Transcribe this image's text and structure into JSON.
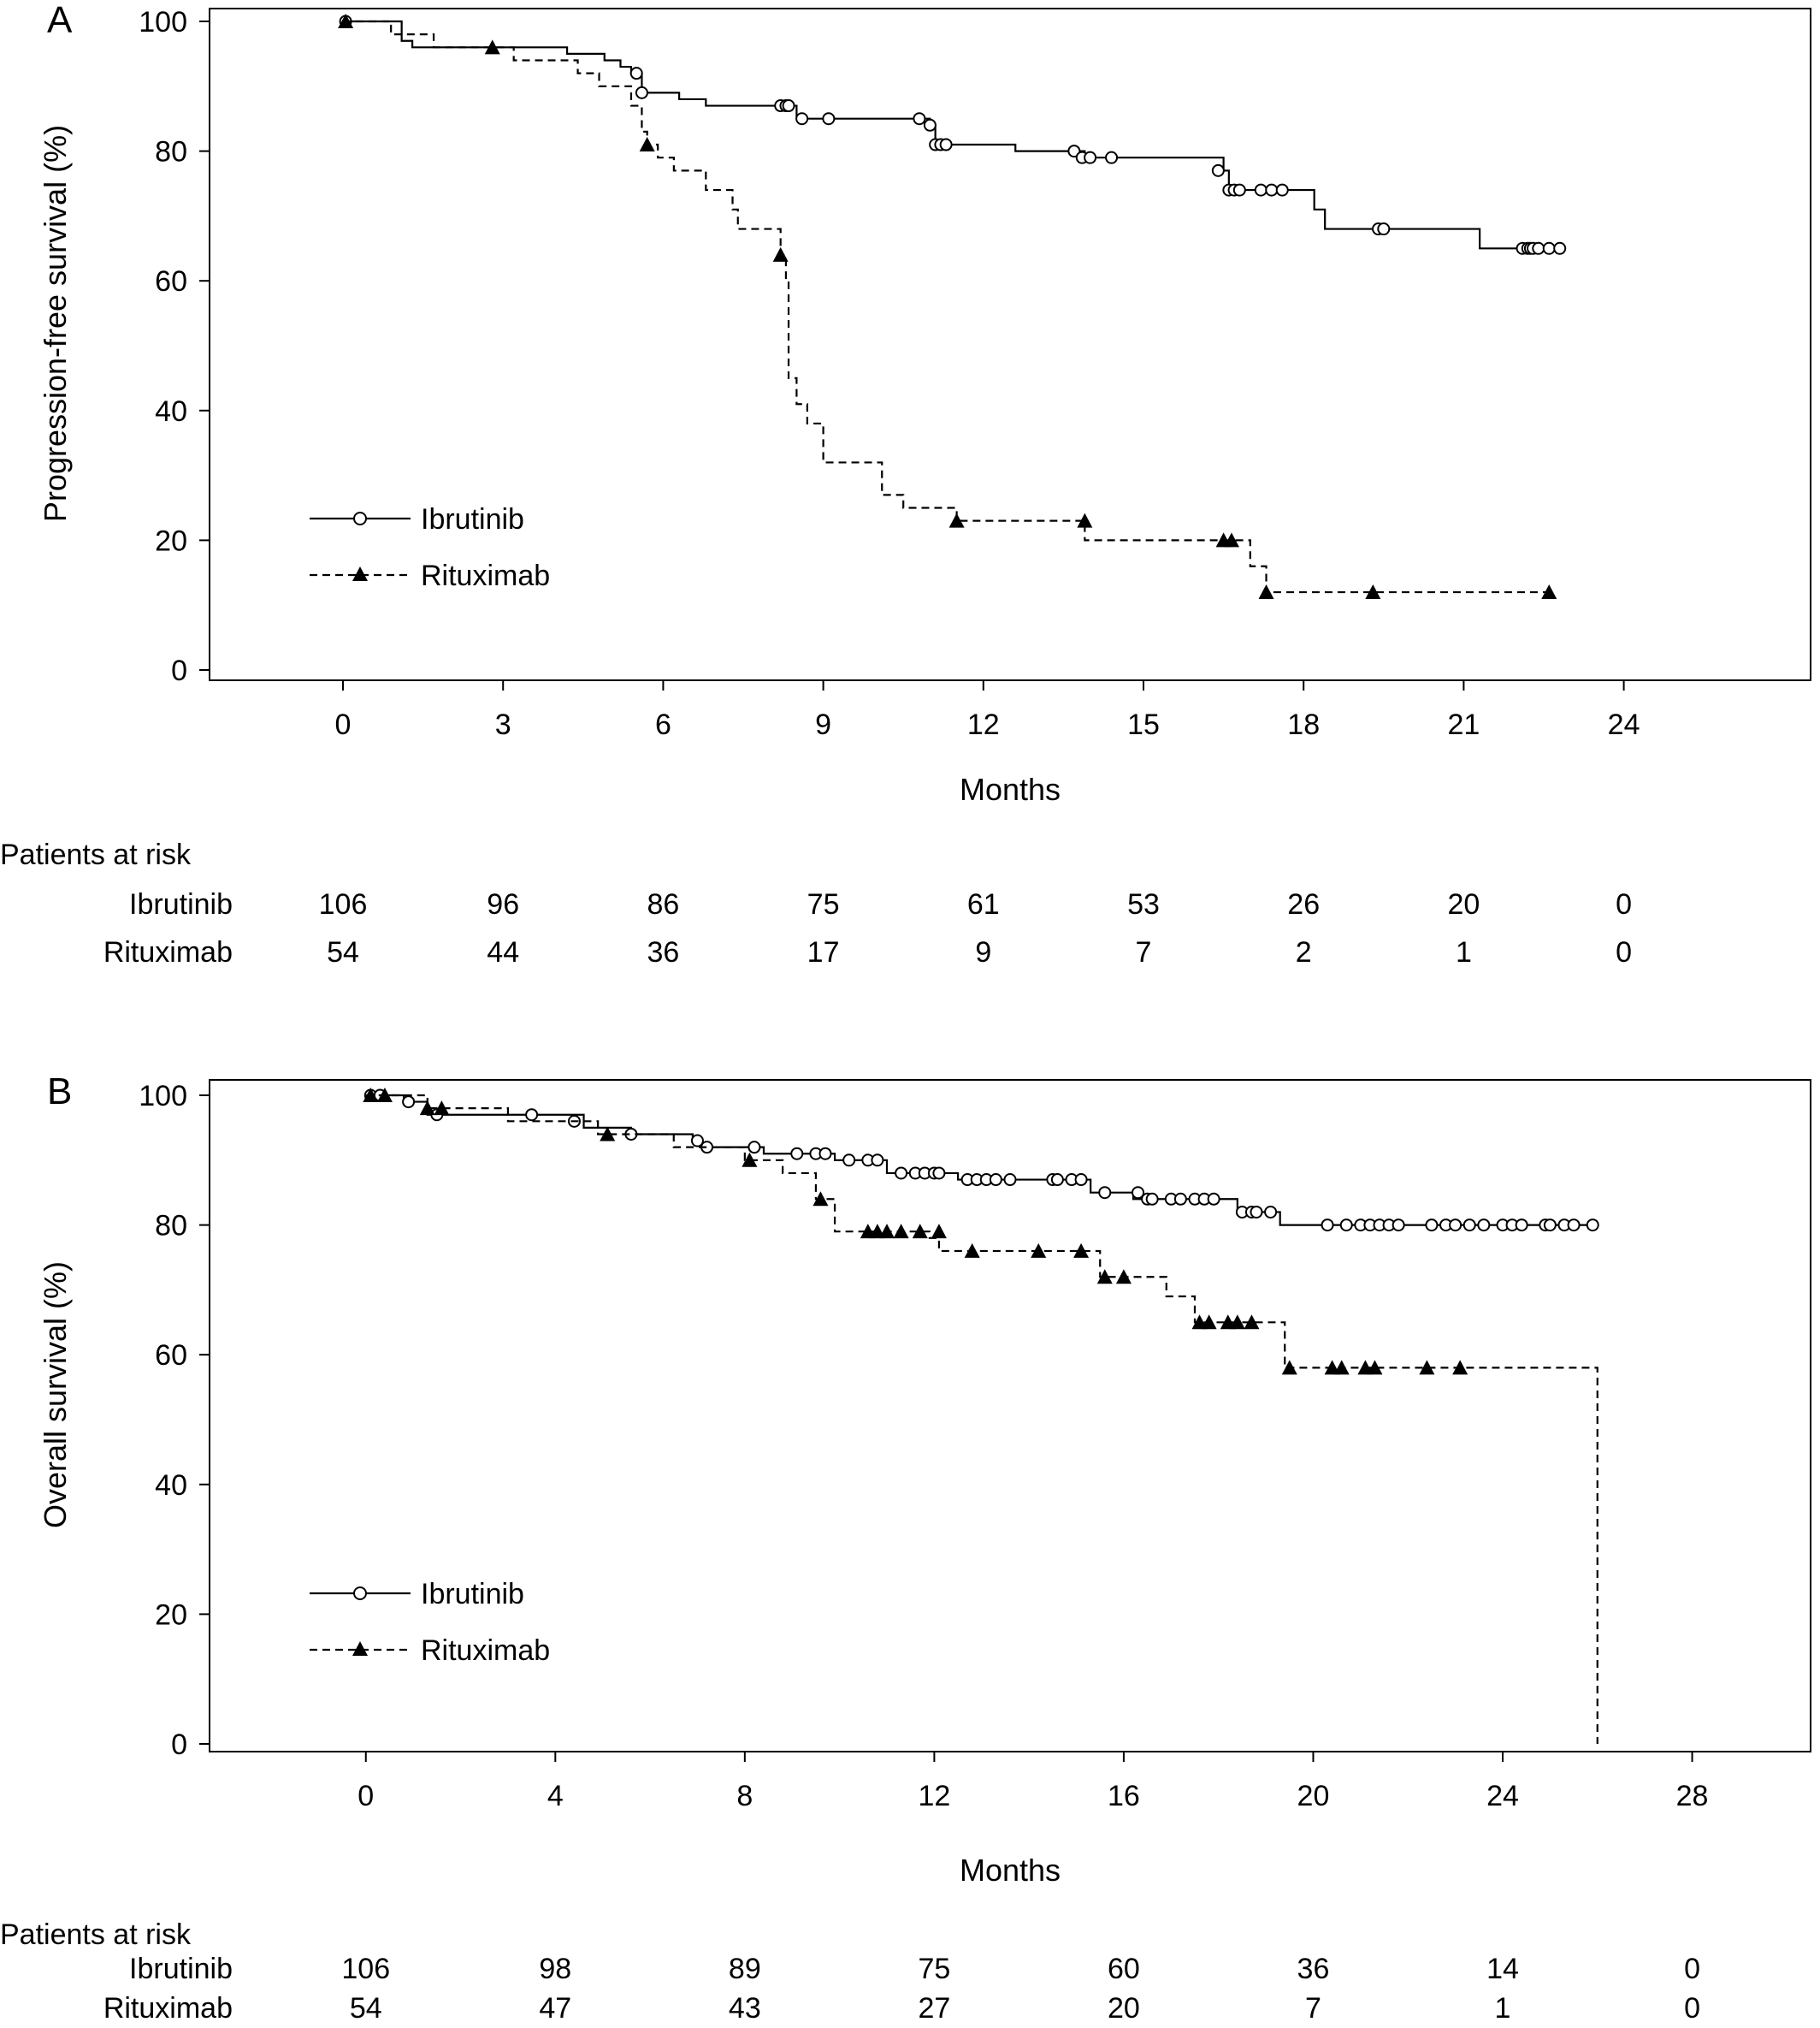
{
  "chart_data": [
    {
      "panel_label": "A",
      "type": "line",
      "ylabel": "Progression-free survival (%)",
      "xlabel": "Months",
      "xlim": [
        -2.5,
        27.5
      ],
      "ylim": [
        -2,
        100
      ],
      "x_ticks": [
        0,
        3,
        6,
        9,
        12,
        15,
        18,
        21,
        24
      ],
      "y_ticks": [
        0,
        20,
        40,
        60,
        80,
        100
      ],
      "legend": {
        "position": "lower-left",
        "entries": [
          "Ibrutinib",
          "Rituximab"
        ]
      },
      "series": [
        {
          "name": "Ibrutinib",
          "style": "solid-open-circle",
          "steps": [
            [
              0,
              100
            ],
            [
              1,
              100
            ],
            [
              1.1,
              97
            ],
            [
              1.3,
              96
            ],
            [
              2.8,
              96
            ],
            [
              4.2,
              95
            ],
            [
              4.9,
              94
            ],
            [
              5.2,
              93
            ],
            [
              5.4,
              92
            ],
            [
              5.6,
              89
            ],
            [
              6.3,
              88
            ],
            [
              6.8,
              87
            ],
            [
              8.2,
              87
            ],
            [
              8.5,
              85
            ],
            [
              10.8,
              85
            ],
            [
              11,
              84
            ],
            [
              11.1,
              81
            ],
            [
              12.6,
              80
            ],
            [
              13.8,
              80
            ],
            [
              13.9,
              79
            ],
            [
              16.4,
              79
            ],
            [
              16.5,
              77
            ],
            [
              16.6,
              74
            ],
            [
              18.1,
              74
            ],
            [
              18.2,
              71
            ],
            [
              18.4,
              68
            ],
            [
              21.2,
              68
            ],
            [
              21.3,
              65
            ],
            [
              22.8,
              65
            ]
          ],
          "censored": [
            [
              0.05,
              100
            ],
            [
              5.5,
              92
            ],
            [
              5.6,
              89
            ],
            [
              8.2,
              87
            ],
            [
              8.3,
              87
            ],
            [
              8.35,
              87
            ],
            [
              8.6,
              85
            ],
            [
              9.1,
              85
            ],
            [
              10.8,
              85
            ],
            [
              11,
              84
            ],
            [
              11.1,
              81
            ],
            [
              11.2,
              81
            ],
            [
              11.3,
              81
            ],
            [
              13.7,
              80
            ],
            [
              13.85,
              79
            ],
            [
              14,
              79
            ],
            [
              14.4,
              79
            ],
            [
              16.4,
              77
            ],
            [
              16.6,
              74
            ],
            [
              16.7,
              74
            ],
            [
              16.8,
              74
            ],
            [
              17.2,
              74
            ],
            [
              17.4,
              74
            ],
            [
              17.6,
              74
            ],
            [
              19.4,
              68
            ],
            [
              19.5,
              68
            ],
            [
              22.1,
              65
            ],
            [
              22.2,
              65
            ],
            [
              22.25,
              65
            ],
            [
              22.3,
              65
            ],
            [
              22.4,
              65
            ],
            [
              22.6,
              65
            ],
            [
              22.8,
              65
            ]
          ]
        },
        {
          "name": "Rituximab",
          "style": "dashed-filled-triangle",
          "steps": [
            [
              0,
              100
            ],
            [
              0.9,
              98
            ],
            [
              1.7,
              96
            ],
            [
              3.2,
              94
            ],
            [
              4.4,
              92
            ],
            [
              4.8,
              90
            ],
            [
              5.4,
              87
            ],
            [
              5.6,
              83
            ],
            [
              5.7,
              81
            ],
            [
              5.9,
              79
            ],
            [
              6.2,
              77
            ],
            [
              6.8,
              74
            ],
            [
              7.3,
              71
            ],
            [
              7.4,
              68
            ],
            [
              8.2,
              64
            ],
            [
              8.3,
              60
            ],
            [
              8.35,
              45
            ],
            [
              8.5,
              41
            ],
            [
              8.7,
              38
            ],
            [
              9,
              32
            ],
            [
              10.1,
              27
            ],
            [
              10.5,
              25
            ],
            [
              11.5,
              23
            ],
            [
              13.9,
              20
            ],
            [
              16.6,
              20
            ],
            [
              17,
              16
            ],
            [
              17.3,
              12
            ],
            [
              22.6,
              12
            ]
          ],
          "censored": [
            [
              0.05,
              100
            ],
            [
              2.8,
              96
            ],
            [
              5.7,
              81
            ],
            [
              8.2,
              64
            ],
            [
              11.5,
              23
            ],
            [
              13.9,
              23
            ],
            [
              16.5,
              20
            ],
            [
              16.65,
              20
            ],
            [
              17.3,
              12
            ],
            [
              19.3,
              12
            ],
            [
              22.6,
              12
            ]
          ]
        }
      ],
      "risk_table": {
        "header": "Patients at risk",
        "times": [
          0,
          3,
          6,
          9,
          12,
          15,
          18,
          21,
          24
        ],
        "rows": [
          {
            "label": "Ibrutinib",
            "counts": [
              "106",
              "96",
              "86",
              "75",
              "61",
              "53",
              "26",
              "20",
              "0"
            ]
          },
          {
            "label": "Rituximab",
            "counts": [
              "54",
              "44",
              "36",
              "17",
              "9",
              "7",
              "2",
              "1",
              "0"
            ]
          }
        ]
      }
    },
    {
      "panel_label": "B",
      "type": "line",
      "ylabel": "Overall survival (%)",
      "xlabel": "Months",
      "xlim": [
        -3.3,
        30.5
      ],
      "ylim": [
        -2,
        100
      ],
      "x_ticks": [
        0,
        4,
        8,
        12,
        16,
        20,
        24,
        28
      ],
      "y_ticks": [
        0,
        20,
        40,
        60,
        80,
        100
      ],
      "legend": {
        "position": "lower-left",
        "entries": [
          "Ibrutinib",
          "Rituximab"
        ]
      },
      "series": [
        {
          "name": "Ibrutinib",
          "style": "solid-open-circle",
          "steps": [
            [
              0,
              100
            ],
            [
              0.8,
              99
            ],
            [
              1.3,
              97
            ],
            [
              3.6,
              97
            ],
            [
              4.6,
              95
            ],
            [
              5.6,
              94
            ],
            [
              6.9,
              93
            ],
            [
              7.1,
              92
            ],
            [
              8,
              92
            ],
            [
              8.4,
              91
            ],
            [
              9.9,
              90
            ],
            [
              11,
              88
            ],
            [
              12.5,
              87
            ],
            [
              14.9,
              87
            ],
            [
              15.3,
              85
            ],
            [
              16.2,
              84
            ],
            [
              18.3,
              84
            ],
            [
              18.4,
              82
            ],
            [
              19.2,
              82
            ],
            [
              19.3,
              80
            ],
            [
              26,
              80
            ]
          ],
          "censored": [
            [
              0.1,
              100
            ],
            [
              0.3,
              100
            ],
            [
              0.9,
              99
            ],
            [
              1.5,
              97
            ],
            [
              3.5,
              97
            ],
            [
              4.4,
              96
            ],
            [
              5.6,
              94
            ],
            [
              7,
              93
            ],
            [
              7.2,
              92
            ],
            [
              8.2,
              92
            ],
            [
              9.1,
              91
            ],
            [
              9.5,
              91
            ],
            [
              9.7,
              91
            ],
            [
              10.2,
              90
            ],
            [
              10.6,
              90
            ],
            [
              10.8,
              90
            ],
            [
              11.3,
              88
            ],
            [
              11.6,
              88
            ],
            [
              11.8,
              88
            ],
            [
              12,
              88
            ],
            [
              12.1,
              88
            ],
            [
              12.7,
              87
            ],
            [
              12.9,
              87
            ],
            [
              13.1,
              87
            ],
            [
              13.3,
              87
            ],
            [
              13.6,
              87
            ],
            [
              14.5,
              87
            ],
            [
              14.6,
              87
            ],
            [
              14.9,
              87
            ],
            [
              15.1,
              87
            ],
            [
              15.6,
              85
            ],
            [
              16.3,
              85
            ],
            [
              16.5,
              84
            ],
            [
              16.6,
              84
            ],
            [
              17,
              84
            ],
            [
              17.2,
              84
            ],
            [
              17.5,
              84
            ],
            [
              17.7,
              84
            ],
            [
              17.9,
              84
            ],
            [
              18.5,
              82
            ],
            [
              18.7,
              82
            ],
            [
              18.8,
              82
            ],
            [
              19.1,
              82
            ],
            [
              20.3,
              80
            ],
            [
              20.7,
              80
            ],
            [
              21,
              80
            ],
            [
              21.2,
              80
            ],
            [
              21.4,
              80
            ],
            [
              21.6,
              80
            ],
            [
              21.8,
              80
            ],
            [
              22.5,
              80
            ],
            [
              22.8,
              80
            ],
            [
              23,
              80
            ],
            [
              23.3,
              80
            ],
            [
              23.6,
              80
            ],
            [
              24,
              80
            ],
            [
              24.2,
              80
            ],
            [
              24.4,
              80
            ],
            [
              24.9,
              80
            ],
            [
              25,
              80
            ],
            [
              25.3,
              80
            ],
            [
              25.5,
              80
            ],
            [
              25.9,
              80
            ]
          ],
          "ibr_note": ""
        },
        {
          "name": "Rituximab",
          "style": "dashed-filled-triangle",
          "steps": [
            [
              0,
              100
            ],
            [
              1.3,
              98
            ],
            [
              3,
              96
            ],
            [
              4.9,
              94
            ],
            [
              6.5,
              92
            ],
            [
              8,
              90
            ],
            [
              8.8,
              88
            ],
            [
              9.5,
              84
            ],
            [
              9.9,
              79
            ],
            [
              11.9,
              78
            ],
            [
              12.1,
              76
            ],
            [
              15.5,
              72
            ],
            [
              16.9,
              69
            ],
            [
              17.5,
              65
            ],
            [
              19.4,
              58
            ],
            [
              26,
              58
            ],
            [
              26,
              0
            ]
          ],
          "censored": [
            [
              0.1,
              100
            ],
            [
              0.4,
              100
            ],
            [
              1.3,
              98
            ],
            [
              1.6,
              98
            ],
            [
              5.1,
              94
            ],
            [
              8.1,
              90
            ],
            [
              9.6,
              84
            ],
            [
              10.6,
              79
            ],
            [
              10.8,
              79
            ],
            [
              11,
              79
            ],
            [
              11.3,
              79
            ],
            [
              11.7,
              79
            ],
            [
              12.1,
              79
            ],
            [
              12.8,
              76
            ],
            [
              14.2,
              76
            ],
            [
              15.1,
              76
            ],
            [
              15.6,
              72
            ],
            [
              16,
              72
            ],
            [
              17.6,
              65
            ],
            [
              17.8,
              65
            ],
            [
              18.2,
              65
            ],
            [
              18.4,
              65
            ],
            [
              18.7,
              65
            ],
            [
              19.5,
              58
            ],
            [
              20.4,
              58
            ],
            [
              20.6,
              58
            ],
            [
              21.1,
              58
            ],
            [
              21.3,
              58
            ],
            [
              22.4,
              58
            ],
            [
              23.1,
              58
            ]
          ]
        }
      ],
      "risk_table": {
        "header": "Patients at risk",
        "times": [
          0,
          4,
          8,
          12,
          16,
          20,
          24,
          28
        ],
        "rows": [
          {
            "label": "Ibrutinib",
            "counts": [
              "106",
              "98",
              "89",
              "75",
              "60",
              "36",
              "14",
              "0"
            ]
          },
          {
            "label": "Rituximab",
            "counts": [
              "54",
              "47",
              "43",
              "27",
              "20",
              "7",
              "1",
              "0"
            ]
          }
        ]
      }
    }
  ]
}
